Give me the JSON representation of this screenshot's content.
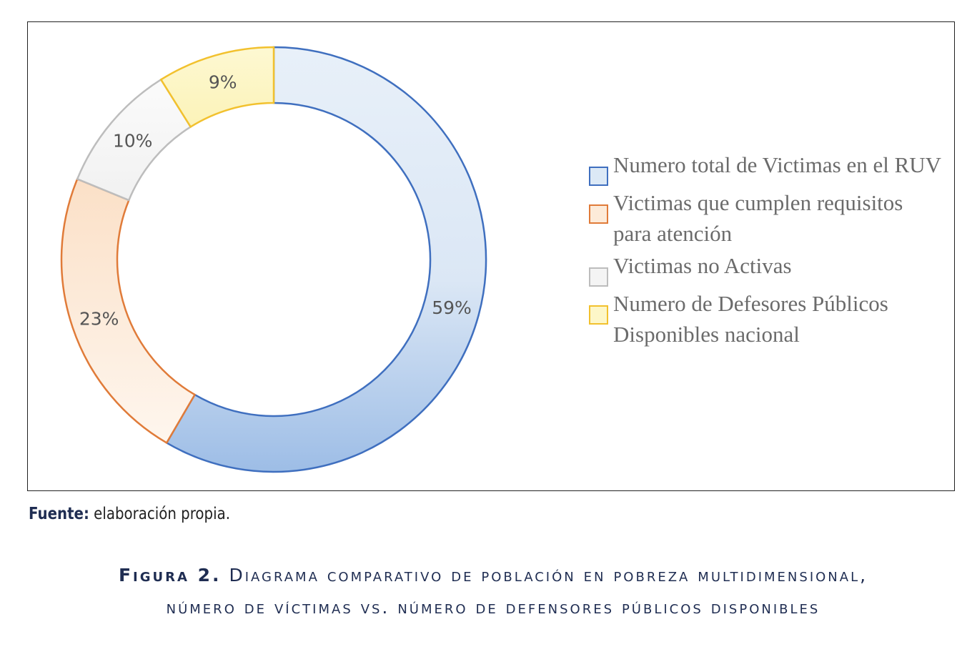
{
  "chart_data": {
    "type": "pie",
    "variant": "donut",
    "categories": [
      "Numero total de Victimas en el RUV",
      "Victimas que cumplen requisitos para atención",
      "Victimas no Activas",
      "Numero de Defesores Públicos Disponibles nacional"
    ],
    "values": [
      59,
      23,
      10,
      9
    ],
    "labels": [
      "59%",
      "23%",
      "10%",
      "9%"
    ],
    "colors": {
      "fill": [
        "#dce9f6",
        "#fdebd9",
        "#f4f4f4",
        "#fdf7c8"
      ],
      "stroke": [
        "#3f6fbf",
        "#e07b39",
        "#bdbdbd",
        "#f2c12e"
      ]
    },
    "legend_position": "right"
  },
  "source": {
    "label": "Fuente:",
    "text": " elaboración propia."
  },
  "caption": {
    "label": "Figura 2.",
    "text": " Diagrama comparativo de población en pobreza multidimensional, número de víctimas vs. número de defensores públicos disponibles"
  }
}
